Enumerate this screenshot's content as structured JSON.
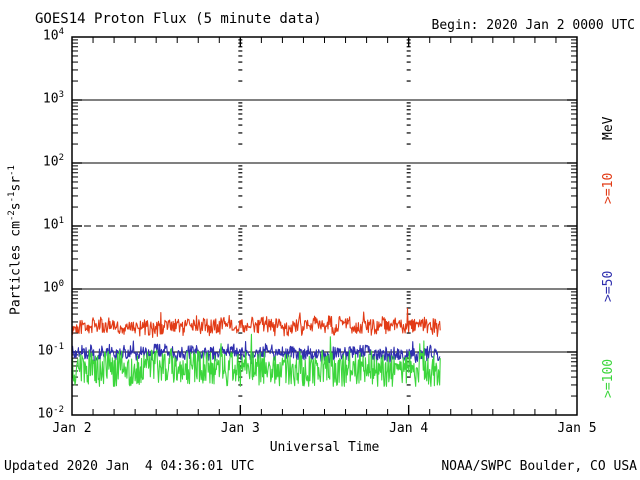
{
  "header": {
    "title": "GOES14 Proton Flux (5 minute data)",
    "begin": "Begin: 2020 Jan 2 0000 UTC"
  },
  "footer": {
    "updated": "Updated 2020 Jan  4 04:36:01 UTC",
    "source": "NOAA/SWPC Boulder, CO USA"
  },
  "right_axis": {
    "unit": "MeV"
  },
  "chart_data": {
    "type": "line",
    "title": "GOES14 Proton Flux (5 minute data)",
    "xlabel": "Universal Time",
    "ylabel_plain": "Particles cm-2s-1sr-1",
    "ylabel_segments": [
      {
        "t": "Particles cm"
      },
      {
        "t": "-2",
        "sup": true
      },
      {
        "t": "s"
      },
      {
        "t": "-1",
        "sup": true
      },
      {
        "t": "sr"
      },
      {
        "t": "-1",
        "sup": true
      }
    ],
    "x_axis": {
      "tick_labels": [
        "Jan 2",
        "Jan 3",
        "Jan 4",
        "Jan 5"
      ],
      "tick_days": [
        0,
        1,
        2,
        3
      ],
      "range_days": 3,
      "minor_tick_hours": 3
    },
    "y_axis": {
      "scale": "log",
      "ylim": [
        0.01,
        10000
      ],
      "tick_exponents": [
        4,
        3,
        2,
        1,
        0,
        -1,
        -2
      ]
    },
    "gridlines": {
      "solid_values": [
        1000,
        100,
        1,
        0.1
      ],
      "dashed_value": 10,
      "vertical_dotted_days": [
        1,
        2
      ]
    },
    "cadence_minutes": 5,
    "data_end_day": 2.19,
    "seed": 1403,
    "axis_color": "#000000",
    "series": [
      {
        "label": ">=10",
        "unit": "MeV",
        "color": "#e23b16",
        "approx_level": 0.25,
        "approx_range": [
          0.13,
          0.5
        ],
        "log10_base": -0.6,
        "log10_jitter": 0.115,
        "walk_amp": 0.07,
        "walk_decay": 0.82,
        "spike_prob": 0.02,
        "spike_amp": 0.22,
        "log10_min": -0.9,
        "log10_max": -0.28
      },
      {
        "label": ">=50",
        "unit": "MeV",
        "color": "#2f2fae",
        "approx_level": 0.095,
        "approx_range": [
          0.055,
          0.17
        ],
        "log10_base": -1.02,
        "log10_jitter": 0.105,
        "walk_amp": 0.06,
        "walk_decay": 0.82,
        "spike_prob": 0.015,
        "spike_amp": 0.18,
        "log10_min": -1.26,
        "log10_max": -0.76
      },
      {
        "label": ">=100",
        "unit": "MeV",
        "color": "#3cd63c",
        "approx_level": 0.04,
        "approx_range": [
          0.028,
          0.15
        ],
        "log10_base": -1.27,
        "log10_jitter": 0.27,
        "walk_amp": 0.06,
        "walk_decay": 0.8,
        "spike_prob": 0.012,
        "spike_amp": 0.5,
        "log10_min": -1.545,
        "log10_max": -0.72
      }
    ]
  }
}
